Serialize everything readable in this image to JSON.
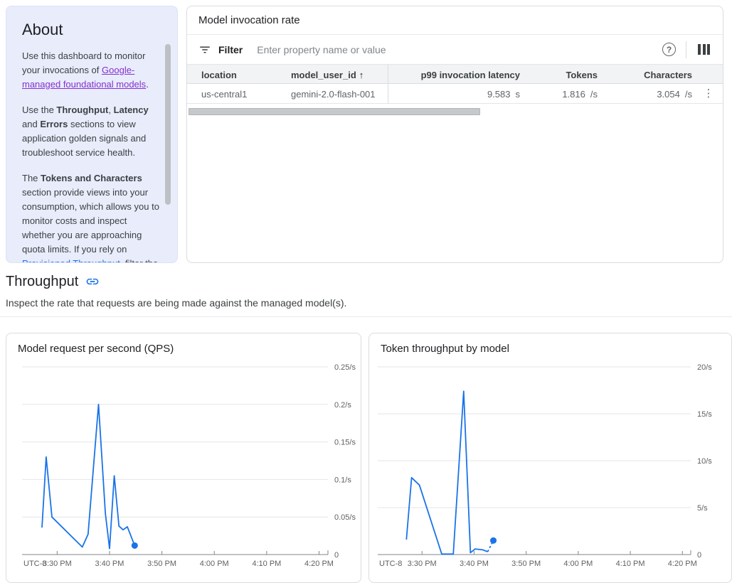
{
  "colors": {
    "accent_blue": "#1a73e8",
    "link_visited_purple": "#8430ce",
    "about_panel_bg": "#e8ecfb",
    "card_border": "#dadce0",
    "text_primary": "#202124",
    "text_secondary": "#5f6368",
    "chart_line": "#1a73e8"
  },
  "about": {
    "title": "About",
    "paragraphs": [
      [
        {
          "t": "Use this dashboard to monitor your invocations of "
        },
        {
          "t": "Google-managed foundational models",
          "s": "visited-link"
        },
        {
          "t": "."
        }
      ],
      [
        {
          "t": "Use the "
        },
        {
          "t": "Throughput",
          "s": "bold"
        },
        {
          "t": ", "
        },
        {
          "t": "Latency",
          "s": "bold"
        },
        {
          "t": " and "
        },
        {
          "t": "Errors",
          "s": "bold"
        },
        {
          "t": " sections to view application golden signals and troubleshoot service health."
        }
      ],
      [
        {
          "t": "The "
        },
        {
          "t": "Tokens and Characters",
          "s": "bold"
        },
        {
          "t": " section provide views into your consumption, which allows you to monitor costs and inspect whether you are approaching quota limits. If you rely on "
        },
        {
          "t": "Provisioned Throughput",
          "s": "link"
        },
        {
          "t": ", filter the"
        }
      ]
    ]
  },
  "invocation_panel": {
    "title": "Model invocation rate",
    "filter_label": "Filter",
    "filter_placeholder": "Enter property name or value",
    "help_icon_glyph": "?",
    "menu_icon_glyph": "⋮",
    "table": {
      "columns": [
        "location",
        "model_user_id",
        "p99 invocation latency",
        "Tokens",
        "Characters"
      ],
      "sort": {
        "column": "model_user_id",
        "direction": "ascending",
        "arrow": "↑"
      },
      "rows": [
        {
          "location": "us-central1",
          "model_user_id": "gemini-2.0-flash-001",
          "p99_value": "9.583",
          "p99_unit": "s",
          "tokens_value": "1.816",
          "tokens_unit": "/s",
          "characters_value": "3.054",
          "characters_unit": "/s"
        }
      ]
    }
  },
  "throughput_section": {
    "title": "Throughput",
    "subtitle": "Inspect the rate that requests are being made against the managed model(s)."
  },
  "chart_data": [
    {
      "type": "line",
      "title": "Model request per second (QPS)",
      "timezone_label": "UTC-8",
      "ylim": [
        0,
        0.25
      ],
      "grid": true,
      "legend": "none",
      "yticks": [
        {
          "value": 0.25,
          "label": "0.25/s"
        },
        {
          "value": 0.2,
          "label": "0.2/s"
        },
        {
          "value": 0.15,
          "label": "0.15/s"
        },
        {
          "value": 0.1,
          "label": "0.1/s"
        },
        {
          "value": 0.05,
          "label": "0.05/s"
        },
        {
          "value": 0,
          "label": "0"
        }
      ],
      "x_axis_minutes_from_330pm": [
        -6.7,
        51.7
      ],
      "xticks": [
        {
          "t": 0,
          "label": "3:30 PM"
        },
        {
          "t": 10,
          "label": "3:40 PM"
        },
        {
          "t": 20,
          "label": "3:50 PM"
        },
        {
          "t": 30,
          "label": "4:00 PM"
        },
        {
          "t": 40,
          "label": "4:10 PM"
        },
        {
          "t": 50,
          "label": "4:20 PM"
        }
      ],
      "series": [
        {
          "name": "model request rate",
          "color": "#1a73e8",
          "end_marker": true,
          "dashed_last_segment": false,
          "points": [
            [
              -2.9,
              0.036
            ],
            [
              -2.1,
              0.13
            ],
            [
              -1.0,
              0.05
            ],
            [
              4.8,
              0.01
            ],
            [
              5.9,
              0.027
            ],
            [
              7.9,
              0.2
            ],
            [
              9.2,
              0.055
            ],
            [
              10.0,
              0.008
            ],
            [
              10.9,
              0.105
            ],
            [
              11.8,
              0.038
            ],
            [
              12.6,
              0.033
            ],
            [
              13.4,
              0.037
            ],
            [
              14.8,
              0.012
            ]
          ]
        }
      ]
    },
    {
      "type": "line",
      "title": "Token throughput by model",
      "timezone_label": "UTC-8",
      "ylim": [
        0,
        20
      ],
      "grid": true,
      "legend": "none",
      "yticks": [
        {
          "value": 20,
          "label": "20/s"
        },
        {
          "value": 15,
          "label": "15/s"
        },
        {
          "value": 10,
          "label": "10/s"
        },
        {
          "value": 5,
          "label": "5/s"
        },
        {
          "value": 0,
          "label": "0"
        }
      ],
      "x_axis_minutes_from_330pm": [
        -8.5,
        51.6
      ],
      "xticks": [
        {
          "t": 0,
          "label": "3:30 PM"
        },
        {
          "t": 10,
          "label": "3:40 PM"
        },
        {
          "t": 20,
          "label": "3:50 PM"
        },
        {
          "t": 30,
          "label": "4:00 PM"
        },
        {
          "t": 40,
          "label": "4:10 PM"
        },
        {
          "t": 50,
          "label": "4:20 PM"
        }
      ],
      "series": [
        {
          "name": "token throughput",
          "color": "#1a73e8",
          "end_marker": true,
          "dashed_last_segment": true,
          "points": [
            [
              -3.0,
              1.6
            ],
            [
              -2.0,
              8.2
            ],
            [
              -0.5,
              7.4
            ],
            [
              3.8,
              0.05
            ],
            [
              6.0,
              0.05
            ],
            [
              8.0,
              17.4
            ],
            [
              9.3,
              0.2
            ],
            [
              10.2,
              0.6
            ],
            [
              11.7,
              0.5
            ],
            [
              12.6,
              0.3
            ],
            [
              13.7,
              1.5
            ]
          ]
        }
      ]
    }
  ]
}
